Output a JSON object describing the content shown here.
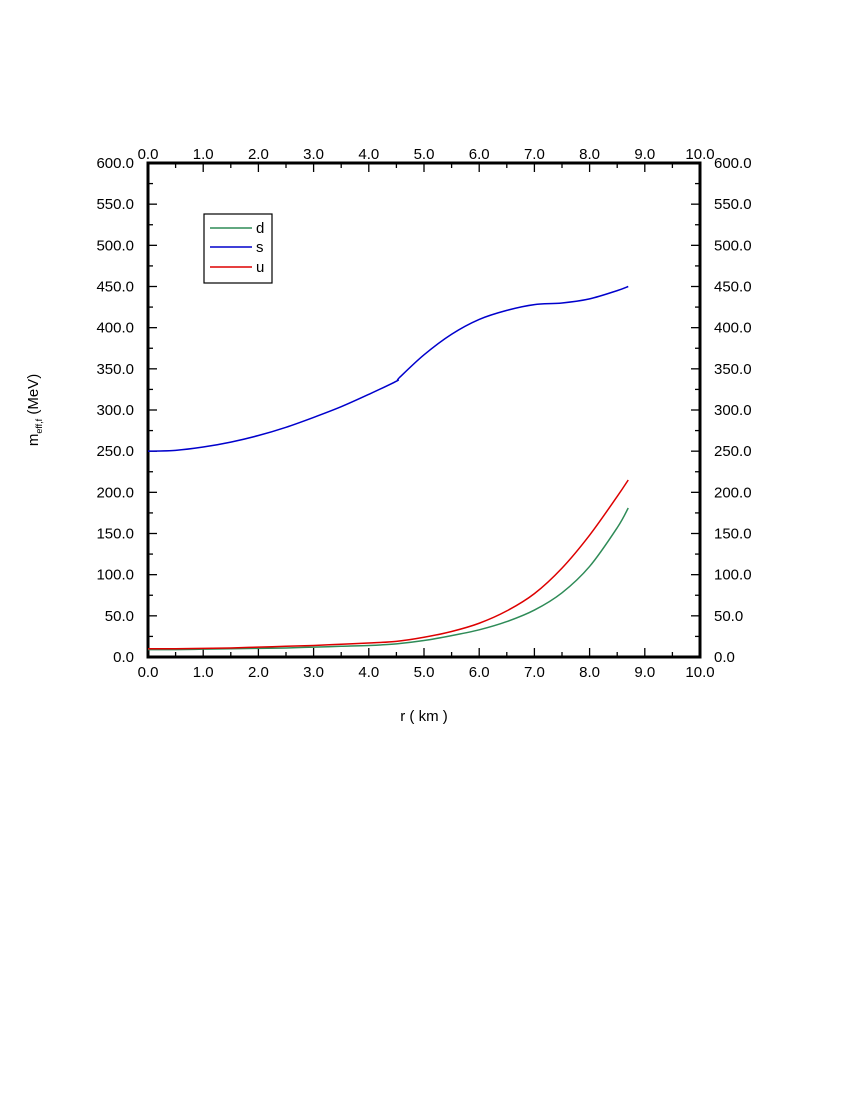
{
  "chart_data": {
    "type": "line",
    "title": "",
    "xlabel": "r ( km )",
    "ylabel_main": "m",
    "ylabel_sub": "eff,f",
    "ylabel_tail": " (MeV)",
    "xlim": [
      0,
      10
    ],
    "ylim": [
      0,
      600
    ],
    "x_ticks": [
      "0.0",
      "1.0",
      "2.0",
      "3.0",
      "4.0",
      "5.0",
      "6.0",
      "7.0",
      "8.0",
      "9.0",
      "10.0"
    ],
    "y_ticks": [
      "0.0",
      "50.0",
      "100.0",
      "150.0",
      "200.0",
      "250.0",
      "300.0",
      "350.0",
      "400.0",
      "450.0",
      "500.0",
      "550.0",
      "600.0"
    ],
    "x_minor_step": 0.5,
    "y_minor_step": 25,
    "grid": false,
    "legend_position": "top-left",
    "series": [
      {
        "name": "d",
        "color": "#2e8b57",
        "x": [
          0.0,
          0.5,
          1.0,
          1.5,
          2.0,
          2.5,
          3.0,
          3.5,
          4.0,
          4.5,
          5.0,
          5.5,
          6.0,
          6.5,
          7.0,
          7.5,
          8.0,
          8.5,
          8.7
        ],
        "y": [
          9,
          9,
          9.5,
          10,
          10.5,
          11,
          12,
          13,
          14,
          16,
          20,
          26,
          33,
          43,
          57,
          78,
          110,
          157,
          181
        ]
      },
      {
        "name": "s",
        "color": "#0000cc",
        "x": [
          0.0,
          0.5,
          1.0,
          1.5,
          2.0,
          2.5,
          3.0,
          3.5,
          4.0,
          4.5,
          4.55,
          5.0,
          5.5,
          6.0,
          6.5,
          7.0,
          7.5,
          8.0,
          8.5,
          8.7
        ],
        "y": [
          250,
          251,
          255,
          261,
          269,
          279,
          291,
          304,
          319,
          335,
          339,
          367,
          392,
          410,
          421,
          428,
          430,
          435,
          445,
          450
        ]
      },
      {
        "name": "u",
        "color": "#dd0000",
        "x": [
          0.0,
          0.5,
          1.0,
          1.5,
          2.0,
          2.5,
          3.0,
          3.5,
          4.0,
          4.5,
          5.0,
          5.5,
          6.0,
          6.5,
          7.0,
          7.5,
          8.0,
          8.5,
          8.7
        ],
        "y": [
          10,
          10,
          10.5,
          11,
          12,
          13,
          14,
          15.5,
          17,
          19,
          24,
          31,
          41,
          56,
          77,
          108,
          148,
          195,
          215
        ]
      }
    ]
  }
}
